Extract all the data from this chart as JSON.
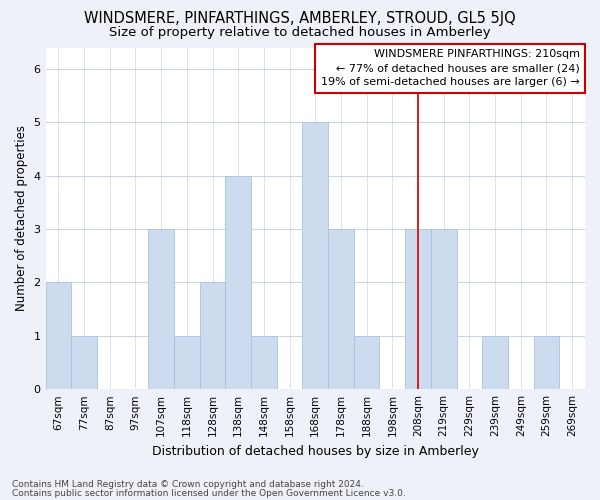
{
  "title": "WINDSMERE, PINFARTHINGS, AMBERLEY, STROUD, GL5 5JQ",
  "subtitle": "Size of property relative to detached houses in Amberley",
  "xlabel": "Distribution of detached houses by size in Amberley",
  "ylabel": "Number of detached properties",
  "categories": [
    "67sqm",
    "77sqm",
    "87sqm",
    "97sqm",
    "107sqm",
    "118sqm",
    "128sqm",
    "138sqm",
    "148sqm",
    "158sqm",
    "168sqm",
    "178sqm",
    "188sqm",
    "198sqm",
    "208sqm",
    "219sqm",
    "229sqm",
    "239sqm",
    "249sqm",
    "259sqm",
    "269sqm"
  ],
  "values": [
    2,
    1,
    0,
    0,
    3,
    1,
    2,
    4,
    1,
    0,
    5,
    3,
    1,
    0,
    3,
    3,
    0,
    1,
    0,
    1,
    0
  ],
  "bar_color": "#ccdcee",
  "bar_edge_color": "#aac4de",
  "highlight_index": 14,
  "highlight_line_color": "#cc0000",
  "annotation_line1": "WINDSMERE PINFARTHINGS: 210sqm",
  "annotation_line2": "← 77% of detached houses are smaller (24)",
  "annotation_line3": "19% of semi-detached houses are larger (6) →",
  "annotation_box_color": "#ffffff",
  "annotation_box_edge_color": "#cc0000",
  "ylim": [
    0,
    6.4
  ],
  "yticks": [
    0,
    1,
    2,
    3,
    4,
    5,
    6
  ],
  "footer1": "Contains HM Land Registry data © Crown copyright and database right 2024.",
  "footer2": "Contains public sector information licensed under the Open Government Licence v3.0.",
  "background_color": "#eef2f8",
  "plot_background_color": "#ffffff",
  "grid_color": "#c8d4e4",
  "title_fontsize": 10.5,
  "subtitle_fontsize": 9.5,
  "tick_fontsize": 7.5,
  "ylabel_fontsize": 8.5,
  "xlabel_fontsize": 9,
  "annotation_fontsize": 8,
  "footer_fontsize": 6.5
}
